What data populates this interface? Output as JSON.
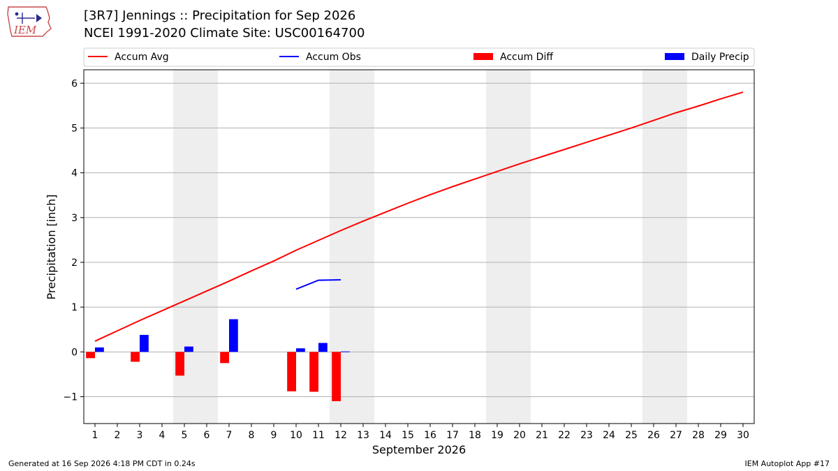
{
  "header": {
    "title_line1": "[3R7] Jennings :: Precipitation for Sep 2026",
    "title_line2": "NCEI 1991-2020 Climate Site: USC00164700",
    "logo_text": "IEM"
  },
  "footer": {
    "generated": "Generated at 16 Sep 2026 4:18 PM CDT in 0.24s",
    "app": "IEM Autoplot App #17"
  },
  "colors": {
    "avg": "#ff0000",
    "obs": "#0000ff",
    "diff": "#ff0000",
    "daily": "#0000ff",
    "weekend_shade": "#eeeeee",
    "grid": "#b0b0b0"
  },
  "chart_data": {
    "type": "bar",
    "xlabel": "September 2026",
    "ylabel": "Precipitation [inch]",
    "xlim": [
      0.5,
      30.5
    ],
    "ylim": [
      -1.6,
      6.3
    ],
    "yticks": [
      -1,
      0,
      1,
      2,
      3,
      4,
      5,
      6
    ],
    "ytick_labels": [
      "−1",
      "0",
      "1",
      "2",
      "3",
      "4",
      "5",
      "6"
    ],
    "x": [
      1,
      2,
      3,
      4,
      5,
      6,
      7,
      8,
      9,
      10,
      11,
      12,
      13,
      14,
      15,
      16,
      17,
      18,
      19,
      20,
      21,
      22,
      23,
      24,
      25,
      26,
      27,
      28,
      29,
      30
    ],
    "x_labels": [
      "1",
      "2",
      "3",
      "4",
      "5",
      "6",
      "7",
      "8",
      "9",
      "10",
      "11",
      "12",
      "13",
      "14",
      "15",
      "16",
      "17",
      "18",
      "19",
      "20",
      "21",
      "22",
      "23",
      "24",
      "25",
      "26",
      "27",
      "28",
      "29",
      "30"
    ],
    "grid": "horizontal",
    "legend_position": "top",
    "weekend_shading": [
      [
        4.5,
        6.5
      ],
      [
        11.5,
        13.5
      ],
      [
        18.5,
        20.5
      ],
      [
        25.5,
        27.5
      ]
    ],
    "series": [
      {
        "name": "Accum Avg",
        "kind": "line",
        "x": [
          1,
          2,
          3,
          4,
          5,
          6,
          7,
          8,
          9,
          10,
          11,
          12,
          13,
          14,
          15,
          16,
          17,
          18,
          19,
          20,
          21,
          22,
          23,
          24,
          25,
          26,
          27,
          28,
          29,
          30
        ],
        "values": [
          0.24,
          0.47,
          0.7,
          0.92,
          1.14,
          1.36,
          1.58,
          1.81,
          2.03,
          2.27,
          2.49,
          2.71,
          2.92,
          3.12,
          3.32,
          3.51,
          3.69,
          3.86,
          4.03,
          4.2,
          4.36,
          4.52,
          4.68,
          4.84,
          5.0,
          5.17,
          5.34,
          5.49,
          5.65,
          5.8
        ]
      },
      {
        "name": "Accum Obs",
        "kind": "line",
        "x": [
          10,
          11,
          12
        ],
        "values": [
          1.4,
          1.6,
          1.61
        ]
      },
      {
        "name": "Accum Diff",
        "kind": "bar",
        "x": [
          1,
          3,
          5,
          7,
          10,
          11,
          12
        ],
        "values": [
          -0.14,
          -0.22,
          -0.53,
          -0.25,
          -0.88,
          -0.89,
          -1.1
        ]
      },
      {
        "name": "Daily Precip",
        "kind": "bar",
        "x": [
          1,
          3,
          5,
          7,
          10,
          11,
          12
        ],
        "values": [
          0.1,
          0.38,
          0.12,
          0.73,
          0.08,
          0.2,
          0.01
        ]
      }
    ]
  }
}
